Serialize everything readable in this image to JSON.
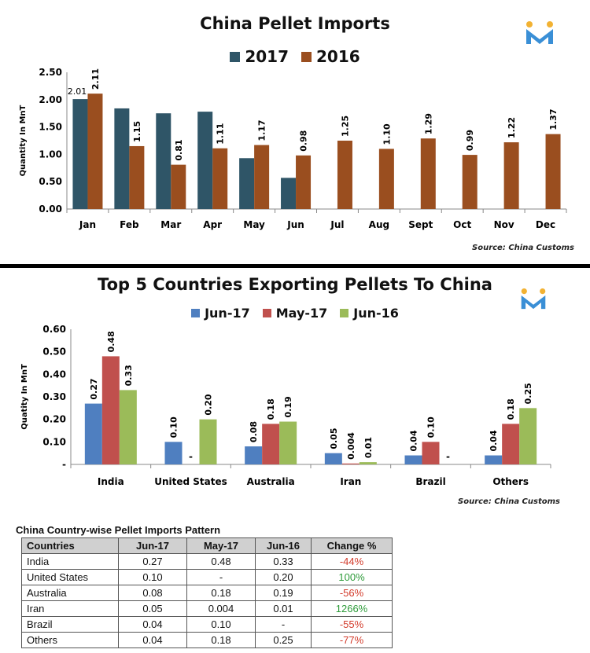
{
  "chart_data": [
    {
      "type": "bar",
      "title": "China Pellet Imports",
      "ylabel": "Quantity In MnT",
      "ylim": [
        0,
        2.5
      ],
      "yticks": [
        "0.00",
        "0.50",
        "1.00",
        "1.50",
        "2.00",
        "2.50"
      ],
      "categories": [
        "Jan",
        "Feb",
        "Mar",
        "Apr",
        "May",
        "Jun",
        "Jul",
        "Aug",
        "Sept",
        "Oct",
        "Nov",
        "Dec"
      ],
      "series": [
        {
          "name": "2017",
          "color": "#2f5567",
          "values": [
            2.01,
            1.84,
            1.75,
            1.78,
            0.93,
            0.57,
            null,
            null,
            null,
            null,
            null,
            null
          ],
          "labels": [
            "2.01",
            "",
            "",
            "",
            "",
            "",
            "",
            "",
            "",
            "",
            "",
            ""
          ]
        },
        {
          "name": "2016",
          "color": "#9a4e1f",
          "values": [
            2.11,
            1.15,
            0.81,
            1.11,
            1.17,
            0.98,
            1.25,
            1.1,
            1.29,
            0.99,
            1.22,
            1.37
          ],
          "labels": [
            "2.11",
            "1.15",
            "0.81",
            "1.11",
            "1.17",
            "0.98",
            "1.25",
            "1.10",
            "1.29",
            "0.99",
            "1.22",
            "1.37"
          ]
        }
      ],
      "source": "Source: China Customs",
      "grid": false,
      "legend": "top-center"
    },
    {
      "type": "bar",
      "title": "Top 5 Countries Exporting Pellets To China",
      "ylabel": "Quatity In MnT",
      "ylim": [
        0,
        0.6
      ],
      "yticks": [
        "-",
        "0.10",
        "0.20",
        "0.30",
        "0.40",
        "0.50",
        "0.60"
      ],
      "categories": [
        "India",
        "United States",
        "Australia",
        "Iran",
        "Brazil",
        "Others"
      ],
      "series": [
        {
          "name": "Jun-17",
          "color": "#4f7fc0",
          "values": [
            0.27,
            0.1,
            0.08,
            0.05,
            0.04,
            0.04
          ],
          "labels": [
            "0.27",
            "0.10",
            "0.08",
            "0.05",
            "0.04",
            "0.04"
          ]
        },
        {
          "name": "May-17",
          "color": "#c0504d",
          "values": [
            0.48,
            0,
            0.18,
            0.004,
            0.1,
            0.18
          ],
          "labels": [
            "0.48",
            "-",
            "0.18",
            "0.004",
            "0.10",
            "0.18"
          ]
        },
        {
          "name": "Jun-16",
          "color": "#9bbb59",
          "values": [
            0.33,
            0.2,
            0.19,
            0.01,
            0,
            0.25
          ],
          "labels": [
            "0.33",
            "0.20",
            "0.19",
            "0.01",
            "-",
            "0.25"
          ]
        }
      ],
      "source": "Source: China Customs",
      "grid": false,
      "legend": "top-center"
    }
  ],
  "table": {
    "title": "China Country-wise Pellet Imports Pattern",
    "headers": [
      "Countries",
      "Jun-17",
      "May-17",
      "Jun-16",
      "Change %"
    ],
    "rows": [
      [
        "India",
        "0.27",
        "0.48",
        "0.33",
        "-44%"
      ],
      [
        "United States",
        "0.10",
        "-",
        "0.20",
        "100%"
      ],
      [
        "Australia",
        "0.08",
        "0.18",
        "0.19",
        "-56%"
      ],
      [
        "Iran",
        "0.05",
        "0.004",
        "0.01",
        "1266%"
      ],
      [
        "Brazil",
        "0.04",
        "0.10",
        "-",
        "-55%"
      ],
      [
        "Others",
        "0.04",
        "0.18",
        "0.25",
        "-77%"
      ]
    ],
    "change_colors": {
      "negative": "#d23a2a",
      "positive": "#2e9b3a"
    }
  },
  "logo": {
    "icon": "m-logo-icon",
    "colors": [
      "#3a8fd6",
      "#f2b233"
    ]
  }
}
